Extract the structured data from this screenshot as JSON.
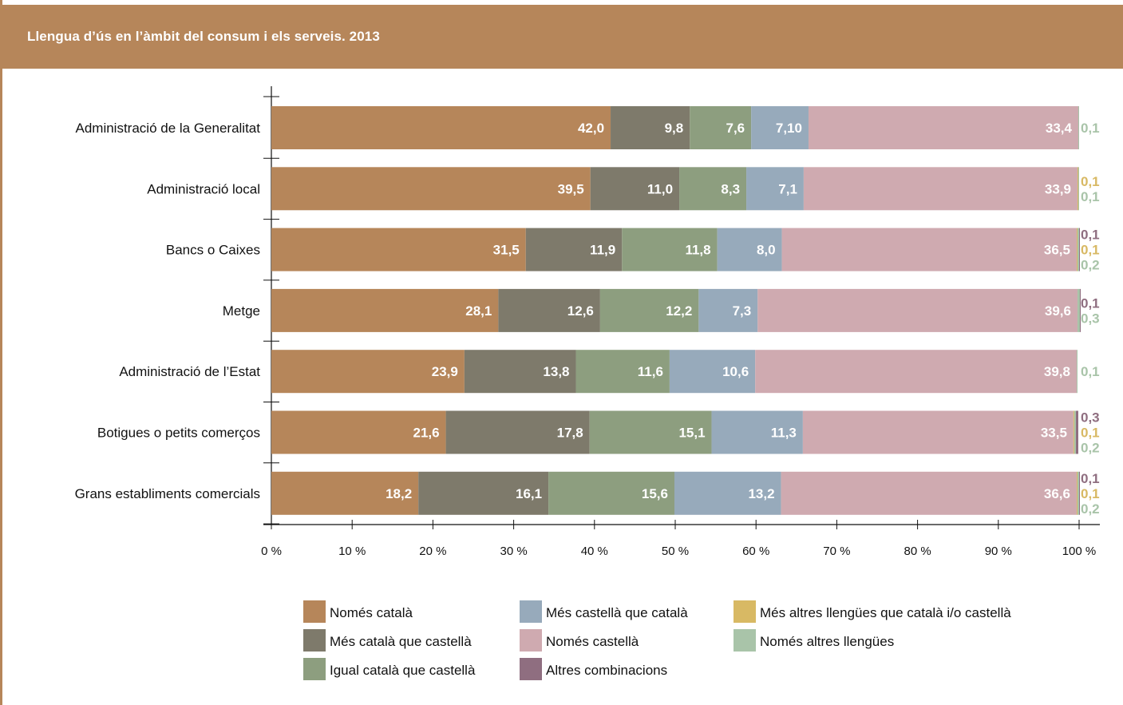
{
  "header": {
    "title": "Llengua d’ús en l’àmbit del consum i els serveis. 2013"
  },
  "colors": {
    "only_catalan": "#b6865a",
    "more_catalan": "#7e7a6b",
    "equal": "#8d9e7f",
    "more_spanish": "#97aabb",
    "only_spanish": "#cfaab0",
    "more_other": "#d8b964",
    "only_other": "#a9c4a9",
    "other_comb": "#8f6e80"
  },
  "chart_data": {
    "type": "bar",
    "orientation": "horizontal",
    "stacked": true,
    "title": "Llengua d’ús en l’àmbit del consum i els serveis. 2013",
    "xlim": [
      0,
      100
    ],
    "x_ticks": [
      "0 %",
      "10 %",
      "20 %",
      "30 %",
      "40 %",
      "50 %",
      "60 %",
      "70 %",
      "80 %",
      "90 %",
      "100 %"
    ],
    "legend_position": "bottom",
    "categories": [
      "Administració de la Generalitat",
      "Administració local",
      "Bancs o Caixes",
      "Metge",
      "Administració de l’Estat",
      "Botigues o petits comerços",
      "Grans establiments comercials"
    ],
    "series": [
      {
        "key": "only_catalan",
        "name": "Només català",
        "values": [
          42.0,
          39.5,
          31.5,
          28.1,
          23.9,
          21.6,
          18.2
        ],
        "labels": [
          "42,0",
          "39,5",
          "31,5",
          "28,1",
          "23,9",
          "21,6",
          "18,2"
        ]
      },
      {
        "key": "more_catalan",
        "name": "Més català que castellà",
        "values": [
          9.8,
          11.0,
          11.9,
          12.6,
          13.8,
          17.8,
          16.1
        ],
        "labels": [
          "9,8",
          "11,0",
          "11,9",
          "12,6",
          "13,8",
          "17,8",
          "16,1"
        ]
      },
      {
        "key": "equal",
        "name": "Igual català que castellà",
        "values": [
          7.6,
          8.3,
          11.8,
          12.2,
          11.6,
          15.1,
          15.6
        ],
        "labels": [
          "7,6",
          "8,3",
          "11,8",
          "12,2",
          "11,6",
          "15,1",
          "15,6"
        ]
      },
      {
        "key": "more_spanish",
        "name": "Més castellà que català",
        "values": [
          7.1,
          7.1,
          8.0,
          7.3,
          10.6,
          11.3,
          13.2
        ],
        "labels": [
          "7,10",
          "7,1",
          "8,0",
          "7,3",
          "10,6",
          "11,3",
          "13,2"
        ]
      },
      {
        "key": "only_spanish",
        "name": "Només castellà",
        "values": [
          33.4,
          33.9,
          36.5,
          39.6,
          39.8,
          33.5,
          36.6
        ],
        "labels": [
          "33,4",
          "33,9",
          "36,5",
          "39,6",
          "39,8",
          "33,5",
          "36,6"
        ]
      },
      {
        "key": "more_other",
        "name": "Més altres llengües que català i/o castellà",
        "values": [
          null,
          0.1,
          0.1,
          null,
          null,
          0.1,
          0.1
        ],
        "labels": [
          null,
          "0,1",
          "0,1",
          null,
          null,
          "0,1",
          "0,1"
        ]
      },
      {
        "key": "only_other",
        "name": "Només altres llengües",
        "values": [
          0.1,
          0.1,
          0.2,
          0.3,
          0.1,
          0.2,
          0.2
        ],
        "labels": [
          "0,1",
          "0,1",
          "0,2",
          "0,3",
          "0,1",
          "0,2",
          "0,2"
        ]
      },
      {
        "key": "other_comb",
        "name": "Altres combinacions",
        "values": [
          null,
          null,
          0.1,
          0.1,
          null,
          0.3,
          0.1
        ],
        "labels": [
          null,
          null,
          "0,1",
          "0,1",
          null,
          "0,3",
          "0,1"
        ]
      }
    ],
    "legend_order": [
      "only_catalan",
      "more_spanish",
      "more_other",
      "more_catalan",
      "only_spanish",
      "only_other",
      "equal",
      "other_comb"
    ]
  }
}
